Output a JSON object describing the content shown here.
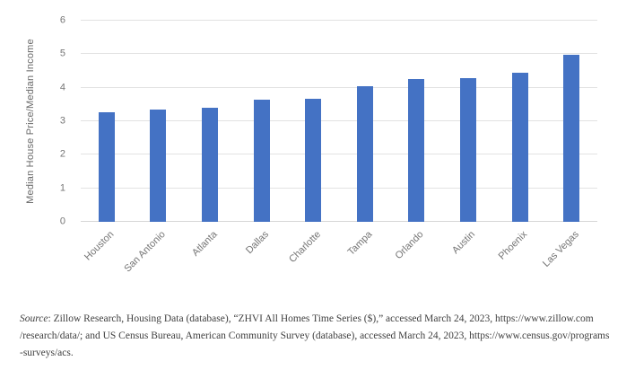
{
  "chart_data": {
    "type": "bar",
    "categories": [
      "Houston",
      "San Antonio",
      "Atlanta",
      "Dallas",
      "Charlotte",
      "Tampa",
      "Orlando",
      "Austin",
      "Phoenix",
      "Las Vegas"
    ],
    "values": [
      3.27,
      3.34,
      3.39,
      3.65,
      3.67,
      4.05,
      4.25,
      4.28,
      4.45,
      4.98
    ],
    "title": "",
    "xlabel": "",
    "ylabel": "Median House Price/Median Income",
    "ylim": [
      0,
      6
    ],
    "yticks": [
      0,
      1,
      2,
      3,
      4,
      5,
      6
    ],
    "grid": true,
    "legend": false,
    "bar_color": "#4472C4",
    "gridline_color": "#e2e2e2",
    "tick_label_color": "#757575"
  },
  "caption": {
    "source_label": "Source",
    "line1_rest": ": Zillow Research, Housing Data (database), “ZHVI All Homes Time Series ($),” accessed March 24, 2023, https://www.zillow.com",
    "line2": "/research/data/; and US Census Bureau, American Community Survey (database), accessed March 24, 2023, https://www.census.gov/programs",
    "line3": "-surveys/acs."
  }
}
